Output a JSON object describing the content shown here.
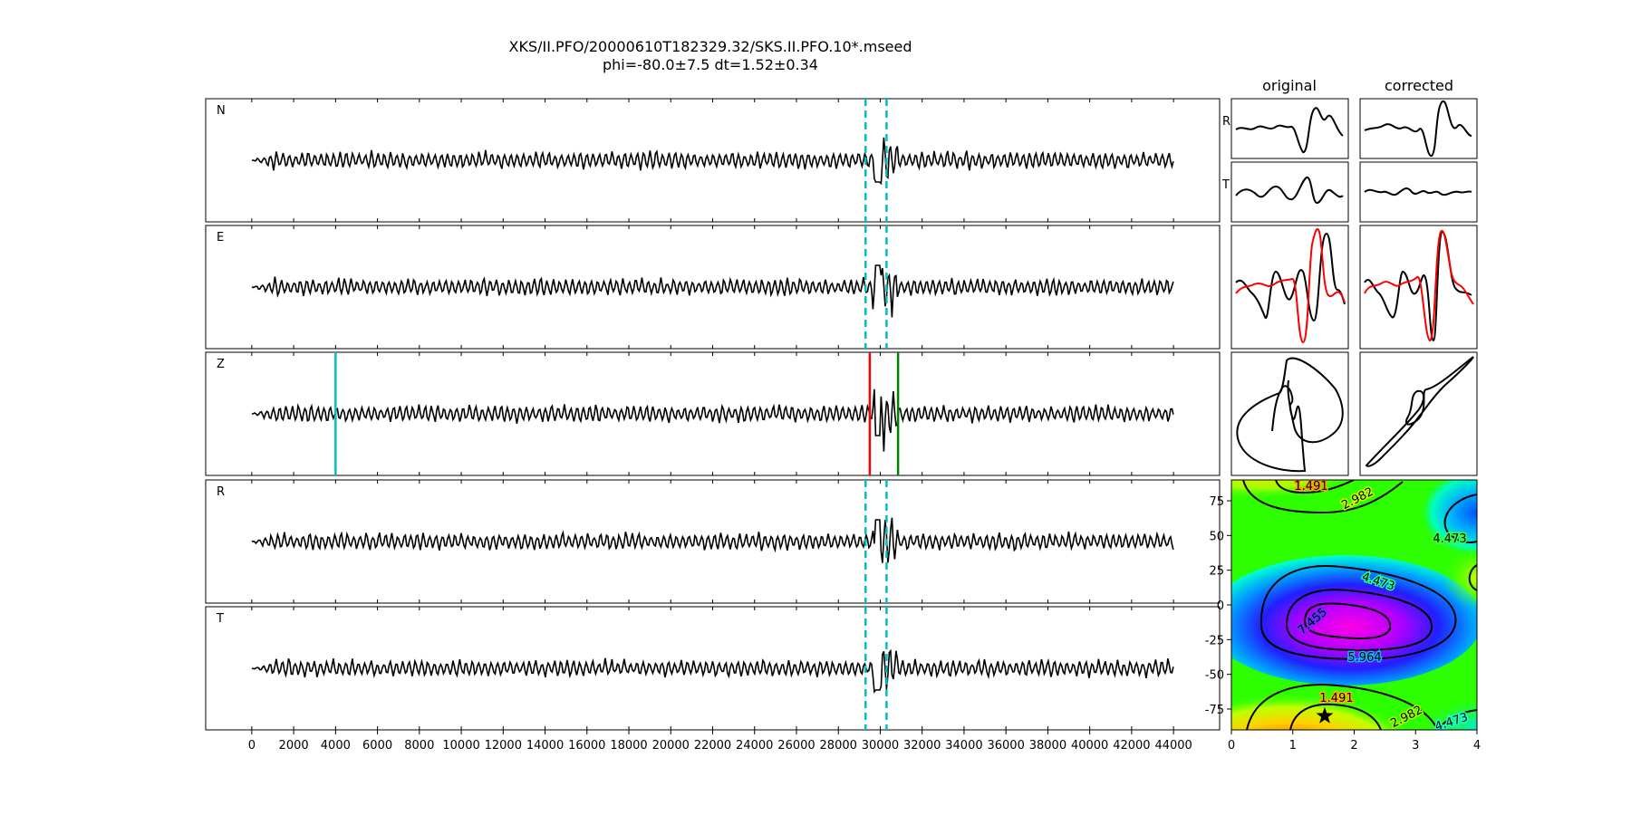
{
  "title": {
    "line1": "XKS/II.PFO/20000610T182329.32/SKS.II.PFO.10*.mseed",
    "line2": "phi=-80.0±7.5 dt=1.52±0.34"
  },
  "chart_data": [
    {
      "type": "line",
      "name": "waveform-panels",
      "panels": [
        "N",
        "E",
        "Z",
        "R",
        "T"
      ],
      "x_ticks": [
        0,
        2000,
        4000,
        6000,
        8000,
        10000,
        12000,
        14000,
        16000,
        18000,
        20000,
        22000,
        24000,
        26000,
        28000,
        30000,
        32000,
        34000,
        36000,
        38000,
        40000,
        42000,
        44000
      ],
      "xlim": [
        -2200,
        46200
      ],
      "trace_range": [
        0,
        44000
      ],
      "window_markers": {
        "panels": [
          "N",
          "E",
          "R",
          "T"
        ],
        "x": [
          29300,
          30300
        ],
        "color": "#00bfbf",
        "style": "dashed"
      },
      "z_markers": [
        {
          "x": 4000,
          "color": "#00bfbf"
        },
        {
          "x": 29500,
          "color": "#ff0000"
        },
        {
          "x": 30850,
          "color": "#008000"
        }
      ],
      "grid": false
    },
    {
      "type": "line",
      "name": "particle-panels",
      "column_titles": [
        "original",
        "corrected"
      ],
      "row_labels": [
        "R",
        "T"
      ]
    },
    {
      "type": "heatmap",
      "name": "error-surface",
      "x_ticks": [
        0,
        1,
        2,
        3,
        4
      ],
      "y_ticks": [
        75,
        50,
        25,
        0,
        -25,
        -50,
        -75
      ],
      "xlim": [
        0,
        4
      ],
      "ylim": [
        -90,
        90
      ],
      "contour_labels": [
        "1.491",
        "2.982",
        "4.473",
        "4.473",
        "7.455",
        "5.964",
        "1.491",
        "2.982",
        "4.473"
      ],
      "best_fit": {
        "dt": 1.52,
        "phi": -80.0
      },
      "colormap": "gist_rainbow_r",
      "grid": false
    }
  ]
}
